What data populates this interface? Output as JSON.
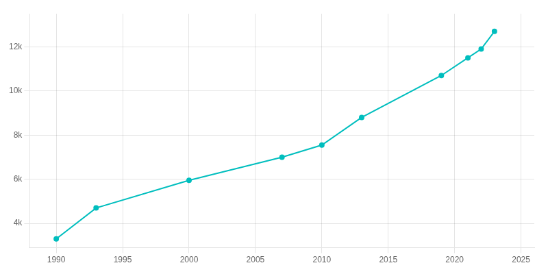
{
  "chart_data": {
    "type": "line",
    "x": [
      1990,
      1993,
      2000,
      2007,
      2010,
      2013,
      2019,
      2021,
      2022,
      2023
    ],
    "values": [
      3300,
      4700,
      5950,
      7000,
      7550,
      8800,
      10700,
      11500,
      11900,
      12700
    ],
    "color": "#00BEBE",
    "marker": "o",
    "xlim": [
      1988,
      2026
    ],
    "xticks": [
      1990,
      1995,
      2000,
      2005,
      2010,
      2015,
      2020,
      2025
    ],
    "ylim": [
      2900,
      13500
    ],
    "yticks": [
      {
        "value": 4000,
        "label": "4k"
      },
      {
        "value": 6000,
        "label": "6k"
      },
      {
        "value": 8000,
        "label": "8k"
      },
      {
        "value": 10000,
        "label": "10k"
      },
      {
        "value": 12000,
        "label": "12k"
      }
    ],
    "grid": true
  }
}
